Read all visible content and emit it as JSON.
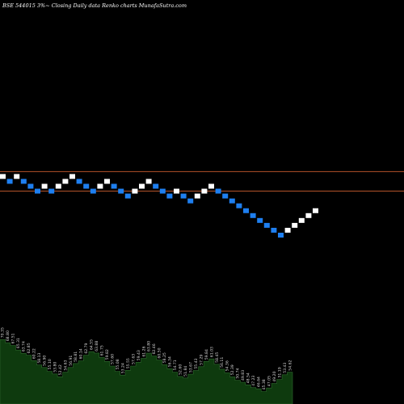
{
  "title": "BSE 544015 3%~  Closing Daily data  Renko  charts MunafaSutra.com",
  "colors": {
    "background": "#000000",
    "up_brick": "#ffffff",
    "down_brick": "#1e7ff0",
    "reference_line": "#b4532a",
    "volume_fill": "#0e3a0e",
    "volume_edge": "#2f6b2f",
    "label": "#d8d8d8"
  },
  "chart_data": {
    "type": "renko",
    "title": "BSE 544015 3%~  Closing Daily data  Renko  charts MunafaSutra.com",
    "brick_size_percent": 3,
    "grid": false,
    "reference_levels": [
      14,
      18
    ],
    "bricks": [
      {
        "dir": "up",
        "level": 17
      },
      {
        "dir": "down",
        "level": 16
      },
      {
        "dir": "up",
        "level": 17
      },
      {
        "dir": "down",
        "level": 16
      },
      {
        "dir": "down",
        "level": 15
      },
      {
        "dir": "down",
        "level": 14
      },
      {
        "dir": "up",
        "level": 15
      },
      {
        "dir": "down",
        "level": 14
      },
      {
        "dir": "up",
        "level": 15
      },
      {
        "dir": "up",
        "level": 16
      },
      {
        "dir": "up",
        "level": 17
      },
      {
        "dir": "down",
        "level": 16
      },
      {
        "dir": "down",
        "level": 15
      },
      {
        "dir": "down",
        "level": 14
      },
      {
        "dir": "up",
        "level": 15
      },
      {
        "dir": "up",
        "level": 16
      },
      {
        "dir": "down",
        "level": 15
      },
      {
        "dir": "down",
        "level": 14
      },
      {
        "dir": "down",
        "level": 13
      },
      {
        "dir": "up",
        "level": 14
      },
      {
        "dir": "up",
        "level": 15
      },
      {
        "dir": "up",
        "level": 16
      },
      {
        "dir": "down",
        "level": 15
      },
      {
        "dir": "down",
        "level": 14
      },
      {
        "dir": "down",
        "level": 13
      },
      {
        "dir": "up",
        "level": 14
      },
      {
        "dir": "down",
        "level": 13
      },
      {
        "dir": "down",
        "level": 12
      },
      {
        "dir": "up",
        "level": 13
      },
      {
        "dir": "up",
        "level": 14
      },
      {
        "dir": "up",
        "level": 15
      },
      {
        "dir": "down",
        "level": 14
      },
      {
        "dir": "down",
        "level": 13
      },
      {
        "dir": "down",
        "level": 12
      },
      {
        "dir": "down",
        "level": 11
      },
      {
        "dir": "down",
        "level": 10
      },
      {
        "dir": "down",
        "level": 9
      },
      {
        "dir": "down",
        "level": 8
      },
      {
        "dir": "down",
        "level": 7
      },
      {
        "dir": "down",
        "level": 6
      },
      {
        "dir": "down",
        "level": 5
      },
      {
        "dir": "up",
        "level": 6
      },
      {
        "dir": "up",
        "level": 7
      },
      {
        "dir": "up",
        "level": 8
      },
      {
        "dir": "up",
        "level": 9
      },
      {
        "dir": "up",
        "level": 10
      }
    ],
    "volume_labels": [
      "70.35",
      "68.80",
      "67.51",
      "65.31",
      "63.74",
      "62.85",
      "60.22",
      "58.13",
      "56.90",
      "55.10",
      "53.80",
      "52.42",
      "54.63",
      "56.91",
      "58.81",
      "60.14",
      "62.79",
      "64.55",
      "63.88",
      "61.75",
      "59.82",
      "57.60",
      "55.08",
      "53.24",
      "55.55",
      "57.63",
      "59.43",
      "61.26",
      "63.80",
      "62.46",
      "60.50",
      "58.25",
      "56.34",
      "54.71",
      "52.60",
      "51.84",
      "53.67",
      "55.43",
      "57.29",
      "59.84",
      "61.03",
      "58.45",
      "56.11",
      "54.36",
      "52.39",
      "50.74",
      "49.83",
      "48.54",
      "47.23",
      "46.64",
      "45.38",
      "47.05",
      "49.20",
      "51.19",
      "53.43",
      "54.62"
    ]
  }
}
